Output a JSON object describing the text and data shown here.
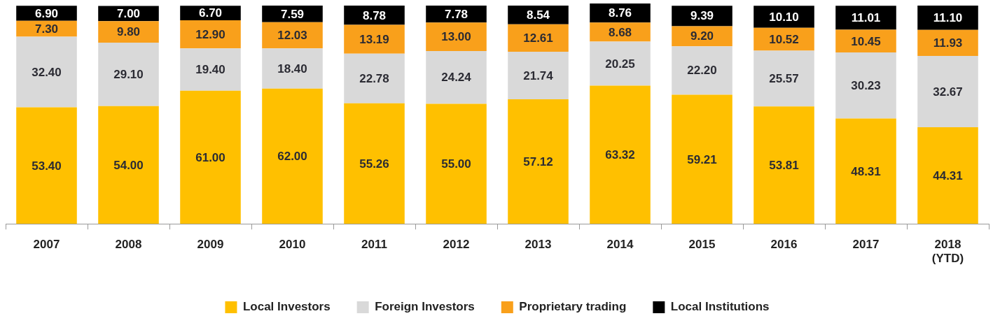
{
  "chart_data": {
    "type": "bar",
    "stacked": true,
    "legend": "bottom",
    "grid": false,
    "categories": [
      "2007",
      "2008",
      "2009",
      "2010",
      "2011",
      "2012",
      "2013",
      "2014",
      "2015",
      "2016",
      "2017",
      "2018\n(YTD)"
    ],
    "series": [
      {
        "name": "Local Investors",
        "color": "#ffc000",
        "values": [
          53.4,
          54.0,
          61.0,
          62.0,
          55.26,
          55.0,
          57.12,
          63.32,
          59.21,
          53.81,
          48.31,
          44.31
        ],
        "value_labels": [
          "53.40",
          "54.00",
          "61.00",
          "62.00",
          "55.26",
          "55.00",
          "57.12",
          "63.32",
          "59.21",
          "53.81",
          "48.31",
          "44.31"
        ]
      },
      {
        "name": "Foreign Investors",
        "color": "#d9d9d9",
        "values": [
          32.4,
          29.1,
          19.4,
          18.4,
          22.78,
          24.24,
          21.74,
          20.25,
          22.2,
          25.57,
          30.23,
          32.67
        ],
        "value_labels": [
          "32.40",
          "29.10",
          "19.40",
          "18.40",
          "22.78",
          "24.24",
          "21.74",
          "20.25",
          "22.20",
          "25.57",
          "30.23",
          "32.67"
        ]
      },
      {
        "name": "Proprietary trading",
        "color": "#f9a01b",
        "values": [
          7.3,
          9.8,
          12.9,
          12.03,
          13.19,
          13.0,
          12.61,
          8.68,
          9.2,
          10.52,
          10.45,
          11.93
        ],
        "value_labels": [
          "7.30",
          "9.80",
          "12.90",
          "12.03",
          "13.19",
          "13.00",
          "12.61",
          "8.68",
          "9.20",
          "10.52",
          "10.45",
          "11.93"
        ]
      },
      {
        "name": "Local Institutions",
        "color": "#000000",
        "values": [
          6.9,
          7.0,
          6.7,
          7.59,
          8.78,
          7.78,
          8.54,
          8.76,
          9.39,
          10.1,
          11.01,
          11.1
        ],
        "value_labels": [
          "6.90",
          "7.00",
          "6.70",
          "7.59",
          "8.78",
          "7.78",
          "8.54",
          "8.76",
          "9.39",
          "10.10",
          "11.01",
          "11.10"
        ]
      }
    ]
  }
}
